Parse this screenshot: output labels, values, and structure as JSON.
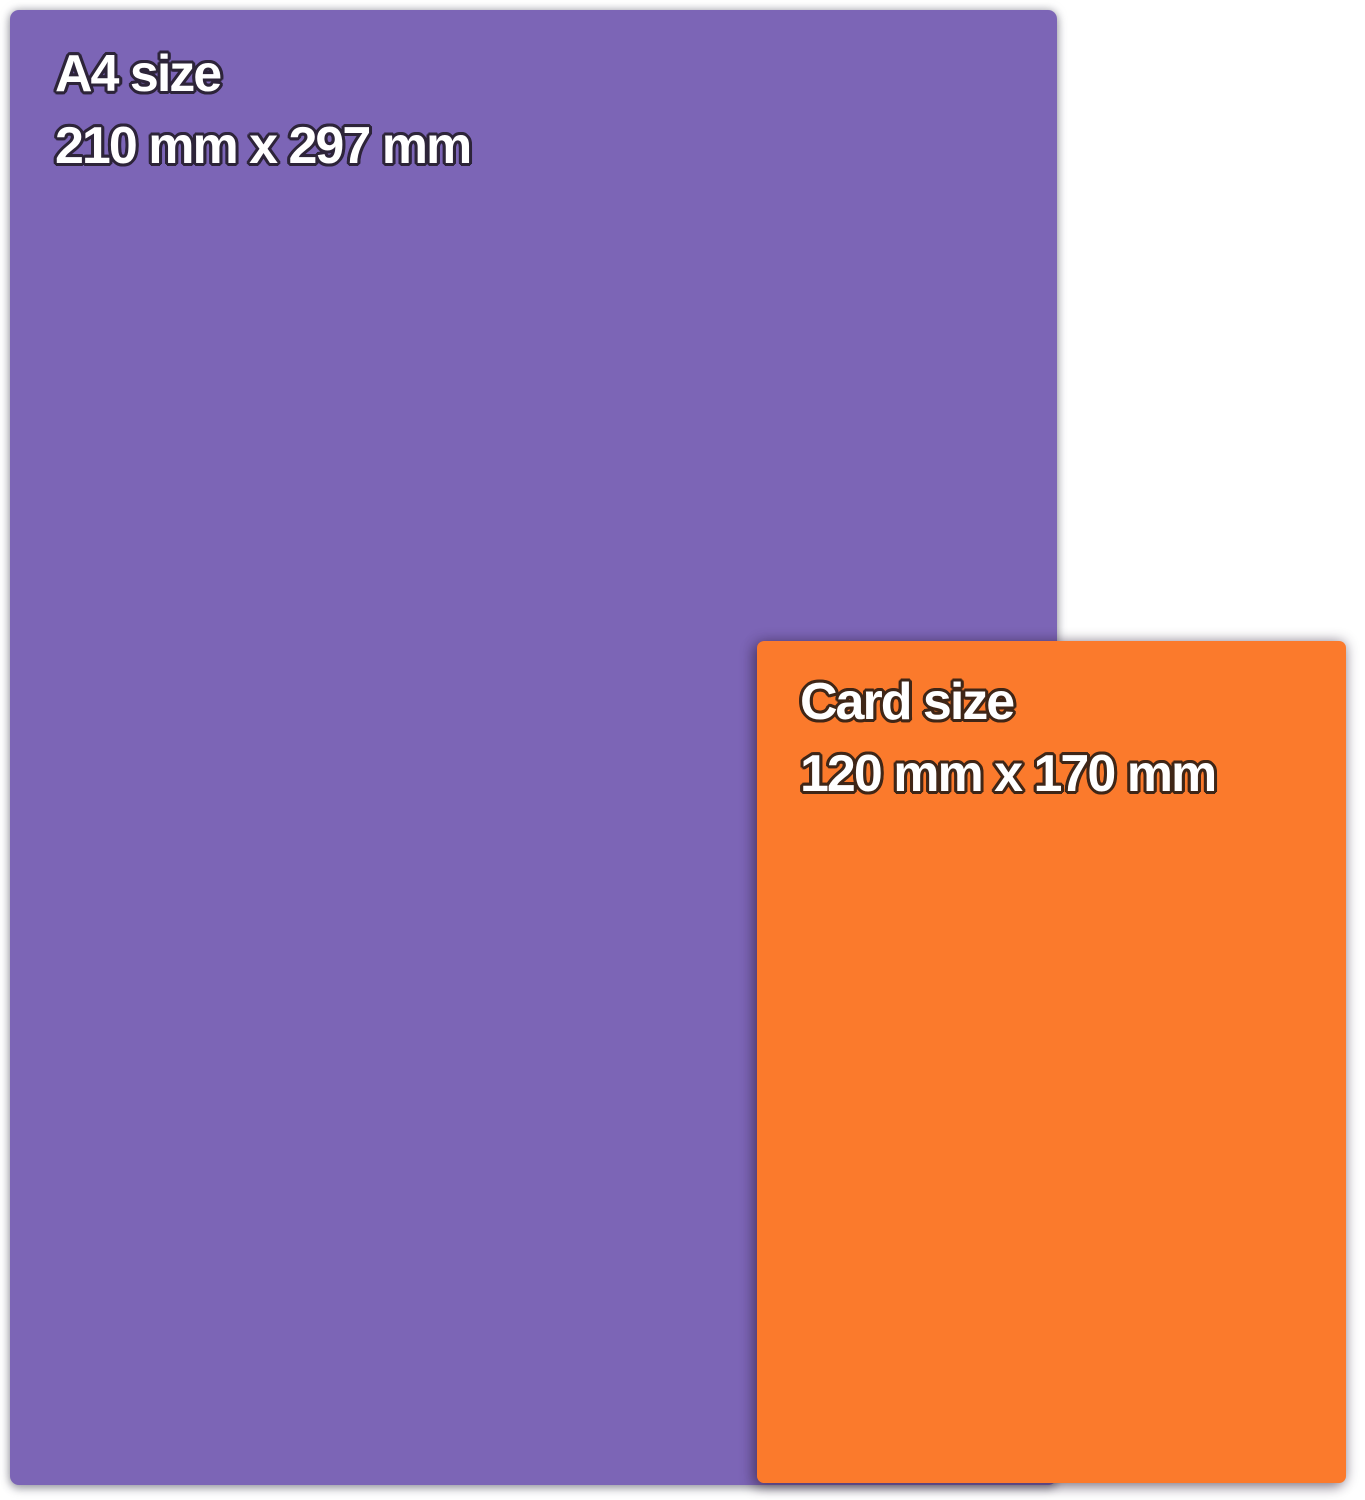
{
  "page": {
    "background_color": "#ffffff"
  },
  "a4_sheet": {
    "title": "A4 size",
    "dimensions": "210 mm x 297 mm",
    "fill_color": "#7c65b6",
    "text_color": "#ffffff",
    "outline_color": "#2d2439"
  },
  "card_sheet": {
    "title": "Card size",
    "dimensions": "120 mm x 170 mm",
    "fill_color": "#fb7a2c",
    "text_color": "#ffffff",
    "outline_color": "#3f2617"
  }
}
